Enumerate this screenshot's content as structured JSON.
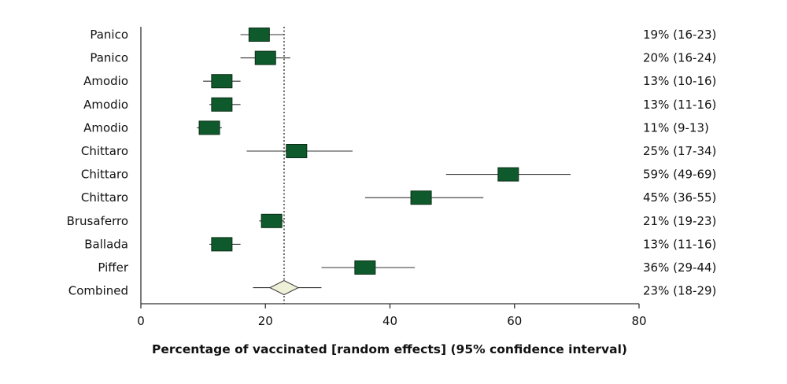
{
  "chart_data": {
    "type": "forest",
    "xlabel": "Percentage of vaccinated [random effects] (95% confidence interval)",
    "xlim": [
      0,
      80
    ],
    "xticks": [
      0,
      20,
      40,
      60,
      80
    ],
    "reference_line": 23,
    "colors": {
      "box": "#0f5a2c",
      "diamond": "#eef0d8",
      "line": "#333333"
    },
    "studies": [
      {
        "name": "Panico",
        "estimate": 19,
        "lower": 16,
        "upper": 23,
        "label": "19% (16-23)"
      },
      {
        "name": "Panico",
        "estimate": 20,
        "lower": 16,
        "upper": 24,
        "label": "20% (16-24)"
      },
      {
        "name": "Amodio",
        "estimate": 13,
        "lower": 10,
        "upper": 16,
        "label": "13% (10-16)"
      },
      {
        "name": "Amodio",
        "estimate": 13,
        "lower": 11,
        "upper": 16,
        "label": "13% (11-16)"
      },
      {
        "name": "Amodio",
        "estimate": 11,
        "lower": 9,
        "upper": 13,
        "label": "11% (9-13)"
      },
      {
        "name": "Chittaro",
        "estimate": 25,
        "lower": 17,
        "upper": 34,
        "label": "25% (17-34)"
      },
      {
        "name": "Chittaro",
        "estimate": 59,
        "lower": 49,
        "upper": 69,
        "label": "59% (49-69)"
      },
      {
        "name": "Chittaro",
        "estimate": 45,
        "lower": 36,
        "upper": 55,
        "label": "45% (36-55)"
      },
      {
        "name": "Brusaferro",
        "estimate": 21,
        "lower": 19,
        "upper": 23,
        "label": "21% (19-23)"
      },
      {
        "name": "Ballada",
        "estimate": 13,
        "lower": 11,
        "upper": 16,
        "label": "13% (11-16)"
      },
      {
        "name": "Piffer",
        "estimate": 36,
        "lower": 29,
        "upper": 44,
        "label": "36% (29-44)"
      }
    ],
    "combined": {
      "name": "Combined",
      "estimate": 23,
      "lower": 18,
      "upper": 29,
      "label": "23% (18-29)"
    }
  }
}
